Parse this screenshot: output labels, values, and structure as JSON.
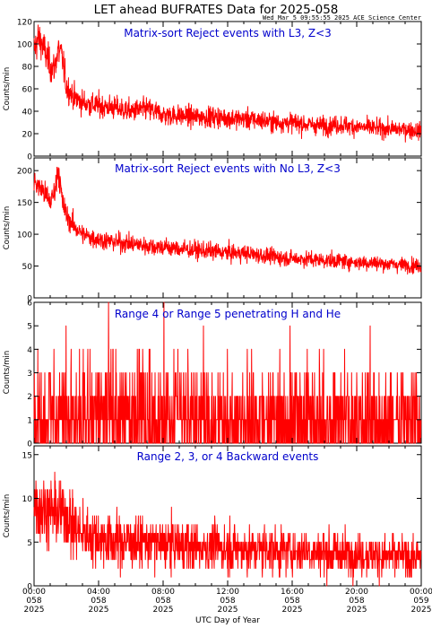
{
  "header": {
    "title": "LET ahead BUFRATES Data for 2025-058",
    "timestamp": "Wed Mar  5 09:55:55 2025 ACE Science Center"
  },
  "xaxis": {
    "label": "UTC Day of Year",
    "ticks": [
      {
        "time": "00:00",
        "doy": "058",
        "year": "2025",
        "hour": 0
      },
      {
        "time": "04:00",
        "doy": "058",
        "year": "2025",
        "hour": 4
      },
      {
        "time": "08:00",
        "doy": "058",
        "year": "2025",
        "hour": 8
      },
      {
        "time": "12:00",
        "doy": "058",
        "year": "2025",
        "hour": 12
      },
      {
        "time": "16:00",
        "doy": "058",
        "year": "2025",
        "hour": 16
      },
      {
        "time": "20:00",
        "doy": "058",
        "year": "2025",
        "hour": 20
      },
      {
        "time": "00:00",
        "doy": "059",
        "year": "2025",
        "hour": 24
      }
    ],
    "range_hours": [
      0,
      24
    ]
  },
  "colors": {
    "trace": "#ff0000",
    "panel_title": "#0000cc",
    "axes": "#000000"
  },
  "chart_data": [
    {
      "type": "line",
      "title": "Matrix-sort Reject events with L3, Z<3",
      "ylabel": "Counts/min",
      "ylim": [
        0,
        120
      ],
      "yticks": [
        0,
        20,
        40,
        60,
        80,
        100,
        120
      ],
      "x": [
        0,
        0.25,
        0.5,
        0.75,
        1.0,
        1.25,
        1.5,
        1.75,
        2.0,
        2.5,
        3,
        3.5,
        4,
        5,
        6,
        7,
        8,
        9,
        10,
        11,
        12,
        13,
        14,
        15,
        16,
        17,
        18,
        19,
        20,
        21,
        22,
        23,
        24
      ],
      "values": [
        95,
        105,
        100,
        90,
        80,
        78,
        95,
        88,
        62,
        52,
        48,
        46,
        45,
        43,
        40,
        42,
        37,
        36,
        35,
        35,
        34,
        33,
        32,
        30,
        30,
        28,
        27,
        28,
        26,
        25,
        24,
        24,
        22
      ]
    },
    {
      "type": "line",
      "title": "Matrix-sort Reject events with No L3, Z<3",
      "ylabel": "Counts/min",
      "ylim": [
        0,
        220
      ],
      "yticks": [
        0,
        50,
        100,
        150,
        200
      ],
      "x": [
        0,
        0.25,
        0.5,
        0.75,
        1.0,
        1.25,
        1.5,
        1.75,
        2.0,
        2.5,
        3,
        3.5,
        4,
        5,
        6,
        7,
        8,
        9,
        10,
        11,
        12,
        13,
        14,
        15,
        16,
        17,
        18,
        19,
        20,
        21,
        22,
        23,
        24
      ],
      "values": [
        185,
        175,
        170,
        160,
        150,
        165,
        205,
        150,
        130,
        112,
        100,
        95,
        92,
        88,
        85,
        82,
        80,
        77,
        75,
        73,
        71,
        70,
        67,
        64,
        62,
        61,
        59,
        58,
        56,
        55,
        53,
        52,
        50
      ]
    },
    {
      "type": "line",
      "title": "Range 4 or Range 5 penetrating H and He",
      "ylabel": "Counts/min",
      "ylim": [
        0,
        6
      ],
      "yticks": [
        0,
        1,
        2,
        3,
        4,
        5,
        6
      ],
      "x": [
        0,
        3,
        6,
        9,
        12,
        15,
        18,
        21,
        24
      ],
      "values": [
        1.3,
        1.3,
        1.2,
        1.2,
        1.1,
        1.1,
        1.0,
        1.0,
        1.0
      ]
    },
    {
      "type": "line",
      "title": "Range 2, 3, or 4 Backward events",
      "ylabel": "Counts/min",
      "ylim": [
        0,
        16
      ],
      "yticks": [
        0,
        5,
        10,
        15
      ],
      "x": [
        0,
        0.5,
        1,
        1.5,
        2,
        2.5,
        3,
        4,
        6,
        8,
        10,
        12,
        14,
        16,
        18,
        20,
        22,
        24
      ],
      "values": [
        9.5,
        9,
        8.5,
        8.5,
        8,
        6.5,
        6,
        5.5,
        5,
        4.8,
        4.5,
        4.3,
        4.2,
        4,
        3.8,
        3.6,
        3.4,
        3.2
      ]
    }
  ]
}
